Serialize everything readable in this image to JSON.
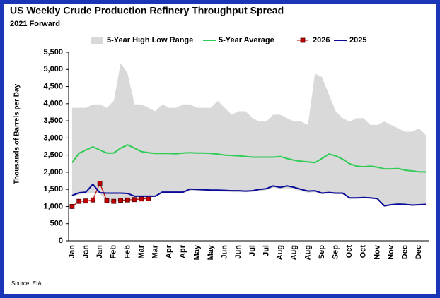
{
  "chart_data": {
    "type": "line",
    "title": "US Weekly Crude Production Refinery Throughput Spread",
    "subtitle": "2021 Forward",
    "y_label": "Thousands of Barrels per Day",
    "source": "Source: EIA",
    "categories": [
      "Jan",
      null,
      "Jan",
      null,
      "Jan",
      null,
      "Feb",
      null,
      "Feb",
      null,
      "Mar",
      null,
      "Mar",
      null,
      "Apr",
      null,
      "Apr",
      null,
      "May",
      null,
      "May",
      null,
      "Jun",
      null,
      "Jun",
      null,
      "Jul",
      null,
      "Jul",
      null,
      "Aug",
      null,
      "Aug",
      null,
      "Aug",
      null,
      "Sep",
      null,
      "Sep",
      null,
      "Oct",
      null,
      "Oct",
      null,
      "Nov",
      null,
      "Nov",
      null,
      "Dec",
      null,
      "Dec",
      null
    ],
    "ylim": [
      0,
      5500
    ],
    "yticks": [
      0,
      500,
      {
        "value": 1000,
        "label": "1,000"
      },
      {
        "value": 1500,
        "label": "1,500"
      },
      {
        "value": 2000,
        "label": "2,000"
      },
      {
        "value": 2500,
        "label": "2,500"
      },
      {
        "value": 3000,
        "label": "3,000"
      },
      {
        "value": 3500,
        "label": "3,500"
      },
      {
        "value": 4000,
        "label": "4,000"
      },
      {
        "value": 4500,
        "label": "4,500"
      },
      {
        "value": 5000,
        "label": "5,000"
      },
      {
        "value": 5500,
        "label": "5,500"
      }
    ],
    "series": [
      {
        "name": "5-Year High Low Range",
        "type": "range",
        "color": "#d9d9d9",
        "values": [
          3880,
          3880,
          3880,
          3980,
          3980,
          3880,
          4080,
          5180,
          4880,
          3980,
          3980,
          3880,
          3780,
          3980,
          3880,
          3880,
          3980,
          3980,
          3880,
          3880,
          3880,
          4080,
          3880,
          3680,
          3780,
          3780,
          3580,
          3480,
          3480,
          3680,
          3680,
          3580,
          3480,
          3480,
          3380,
          4880,
          4780,
          4280,
          3780,
          3580,
          3480,
          3580,
          3580,
          3380,
          3380,
          3480,
          3380,
          3280,
          3180,
          3180,
          3280,
          3080
        ],
        "low": [
          1300,
          1350,
          1380,
          1400,
          1380,
          1150,
          1150,
          1180,
          1190,
          1200,
          1220,
          1230,
          1300,
          1400,
          1400,
          1400,
          1400,
          1450,
          1450,
          1450,
          1440,
          1440,
          1430,
          1420,
          1420,
          1420,
          1430,
          1450,
          1480,
          1550,
          1520,
          1530,
          1500,
          1450,
          1400,
          1420,
          1360,
          1380,
          1360,
          1360,
          1230,
          1230,
          1240,
          1230,
          1210,
          1000,
          1030,
          1050,
          1040,
          1020,
          1030,
          1040
        ]
      },
      {
        "name": "5-Year Average",
        "type": "line",
        "color": "#2ecc55",
        "values": [
          2280,
          2550,
          2650,
          2740,
          2650,
          2560,
          2560,
          2700,
          2800,
          2700,
          2600,
          2570,
          2550,
          2550,
          2550,
          2540,
          2560,
          2570,
          2560,
          2560,
          2550,
          2530,
          2500,
          2490,
          2480,
          2460,
          2440,
          2440,
          2440,
          2440,
          2460,
          2400,
          2350,
          2320,
          2300,
          2280,
          2400,
          2530,
          2480,
          2380,
          2250,
          2180,
          2160,
          2180,
          2150,
          2100,
          2100,
          2110,
          2060,
          2040,
          2010,
          2010
        ]
      },
      {
        "name": "2026",
        "type": "marker-line",
        "color": "#c00000",
        "values": [
          1000,
          1150,
          1160,
          1190,
          1680,
          1170,
          1150,
          1180,
          1190,
          1200,
          1220,
          1230,
          null,
          null,
          null,
          null,
          null,
          null,
          null,
          null,
          null,
          null,
          null,
          null,
          null,
          null,
          null,
          null,
          null,
          null,
          null,
          null,
          null,
          null,
          null,
          null,
          null,
          null,
          null,
          null,
          null,
          null,
          null,
          null,
          null,
          null,
          null,
          null,
          null,
          null,
          null,
          null
        ]
      },
      {
        "name": "2025",
        "type": "line",
        "color": "#0a0a9a",
        "values": [
          1320,
          1400,
          1420,
          1650,
          1400,
          1390,
          1390,
          1390,
          1380,
          1300,
          1300,
          1300,
          1300,
          1420,
          1420,
          1420,
          1420,
          1510,
          1500,
          1490,
          1480,
          1480,
          1470,
          1460,
          1460,
          1450,
          1460,
          1500,
          1520,
          1600,
          1560,
          1600,
          1560,
          1500,
          1450,
          1460,
          1390,
          1410,
          1390,
          1390,
          1250,
          1250,
          1260,
          1250,
          1230,
          1020,
          1050,
          1070,
          1060,
          1040,
          1050,
          1060
        ]
      }
    ]
  }
}
